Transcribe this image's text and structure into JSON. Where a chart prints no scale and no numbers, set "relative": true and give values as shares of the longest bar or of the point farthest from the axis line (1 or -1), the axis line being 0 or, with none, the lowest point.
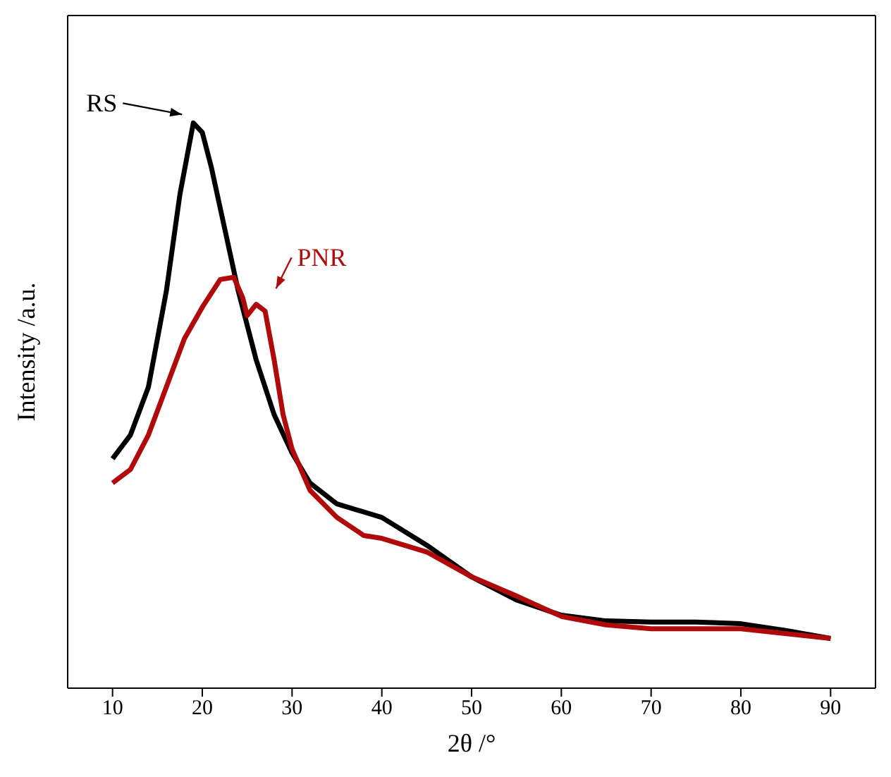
{
  "chart_data": {
    "type": "line",
    "xlabel": "2θ /°",
    "ylabel": "Intensity /a.u.",
    "relative": true,
    "xlim": [
      5,
      95
    ],
    "xticks": [
      10,
      20,
      30,
      40,
      50,
      60,
      70,
      80,
      90
    ],
    "marker": "none",
    "line_style": "solid",
    "series": [
      {
        "name": "RS",
        "color": "#000000",
        "x": [
          10,
          12,
          14,
          16,
          17.5,
          19,
          20,
          21,
          22,
          24,
          26,
          28,
          30,
          32,
          35,
          40,
          45,
          50,
          55,
          60,
          65,
          70,
          75,
          80,
          85,
          90
        ],
        "values": [
          0.406,
          0.448,
          0.533,
          0.703,
          0.873,
          1,
          0.983,
          0.922,
          0.849,
          0.703,
          0.581,
          0.484,
          0.416,
          0.363,
          0.326,
          0.302,
          0.253,
          0.197,
          0.156,
          0.129,
          0.119,
          0.117,
          0.117,
          0.114,
          0.102,
          0.088
        ]
      },
      {
        "name": "PNR",
        "color": "#b00a0a",
        "x": [
          10,
          12,
          14,
          16,
          18,
          20,
          22,
          23.5,
          24.5,
          25,
          26,
          27,
          28,
          29,
          30,
          32,
          35,
          38,
          40,
          45,
          50,
          55,
          60,
          65,
          70,
          80,
          90
        ],
        "values": [
          0.363,
          0.387,
          0.448,
          0.533,
          0.618,
          0.674,
          0.723,
          0.727,
          0.691,
          0.659,
          0.679,
          0.667,
          0.581,
          0.484,
          0.423,
          0.35,
          0.302,
          0.27,
          0.265,
          0.241,
          0.197,
          0.163,
          0.127,
          0.112,
          0.105,
          0.105,
          0.088
        ]
      }
    ]
  }
}
